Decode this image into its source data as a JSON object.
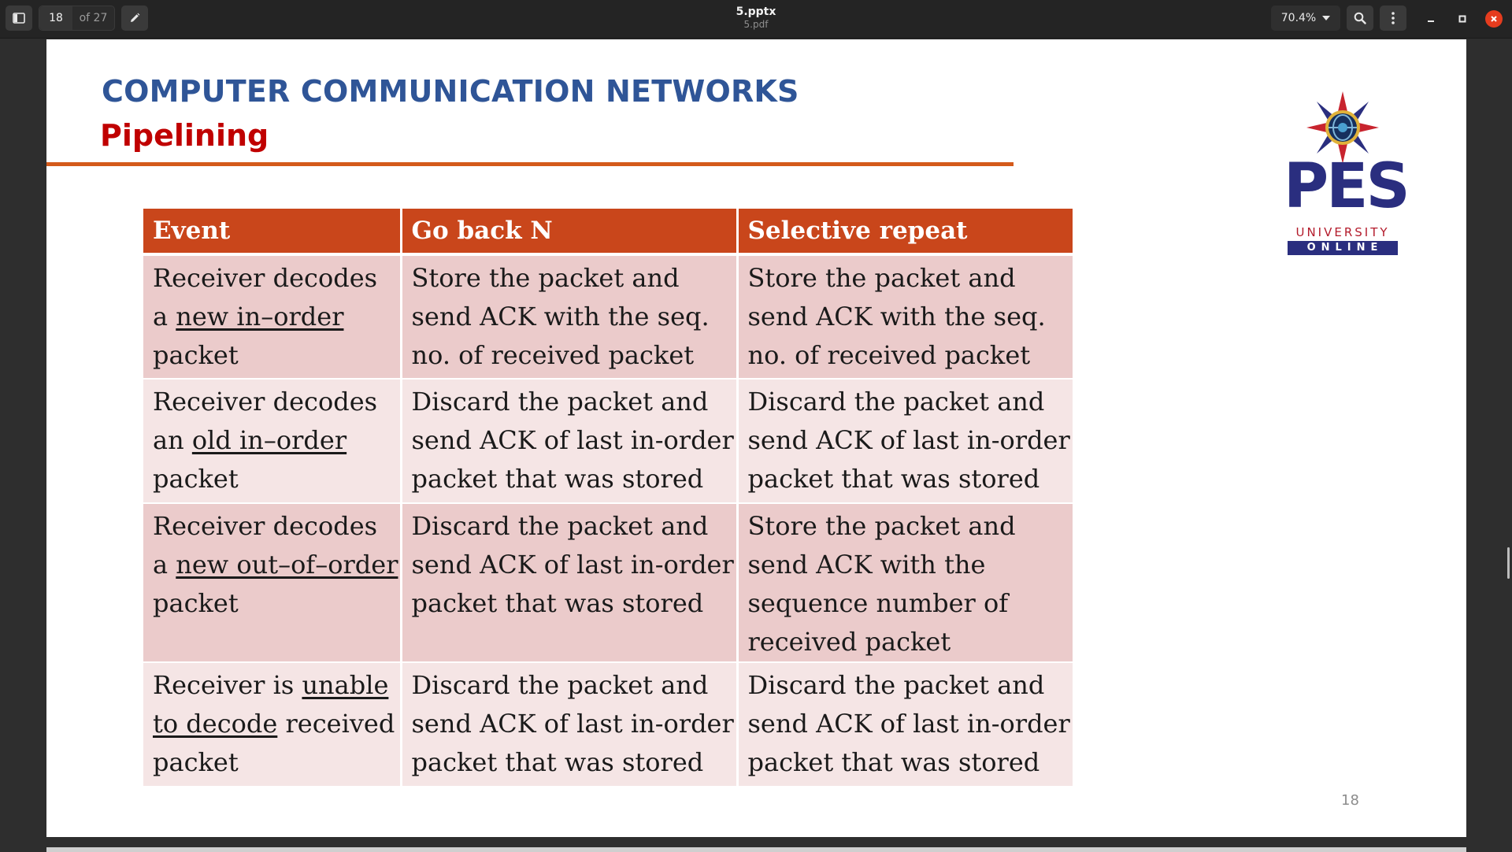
{
  "toolbar": {
    "current_page": "18",
    "page_total": "of 27",
    "title": "5.pptx",
    "subtitle": "5.pdf",
    "zoom": "70.4%",
    "icons": {
      "sidebar": "sidebar-toggle-icon",
      "edit": "pencil-icon",
      "zoom_dropdown": "chevron-down-icon",
      "search": "search-icon",
      "menu": "vertical-dots-icon",
      "minimize": "minimize-icon",
      "maximize": "maximize-icon",
      "close": "close-icon"
    },
    "close_color": "#e53c1e"
  },
  "slide": {
    "title": "COMPUTER COMMUNICATION NETWORKS",
    "subtitle": "Pipelining",
    "title_color": "#2f5597",
    "subtitle_color": "#c00000",
    "rule_color": "#d45a1a",
    "slide_number": "18",
    "logo": {
      "name": "PES",
      "line2": "UNIVERSITY",
      "line3": "ONLINE",
      "brand_color": "#2a2e7f",
      "accent_color": "#b31b2b"
    },
    "table": {
      "header_color": "#c9461b",
      "row_colors": [
        "#ebcbcb",
        "#f5e5e5"
      ],
      "headers": [
        "Event",
        "Go back N",
        "Selective repeat"
      ],
      "rows": [
        {
          "event": {
            "pre": "Receiver decodes a ",
            "underlined": "new in–order",
            "post": " packet"
          },
          "go_back_n": "Store the packet and send ACK with the seq. no. of received packet",
          "selective_repeat": "Store the packet and send ACK with the seq. no. of received packet"
        },
        {
          "event": {
            "pre": "Receiver decodes an ",
            "underlined": "old in–order",
            "post": " packet"
          },
          "go_back_n": "Discard the packet and send ACK of last in-order packet that was stored",
          "selective_repeat": "Discard the packet and send ACK of last in-order packet that was stored"
        },
        {
          "event": {
            "pre": "Receiver decodes a ",
            "underlined": "new out–of–order",
            "post": " packet"
          },
          "go_back_n": "Discard the packet and send ACK of last in-order packet that was stored",
          "selective_repeat": "Store the packet and send ACK with the sequence number of received packet"
        },
        {
          "event": {
            "pre": "Receiver is ",
            "underlined": "unable to decode",
            "post": " received packet"
          },
          "go_back_n": "Discard the packet and send ACK of last in-order packet that was stored",
          "selective_repeat": "Discard the packet and send ACK of last in-order packet that was stored"
        }
      ]
    }
  }
}
